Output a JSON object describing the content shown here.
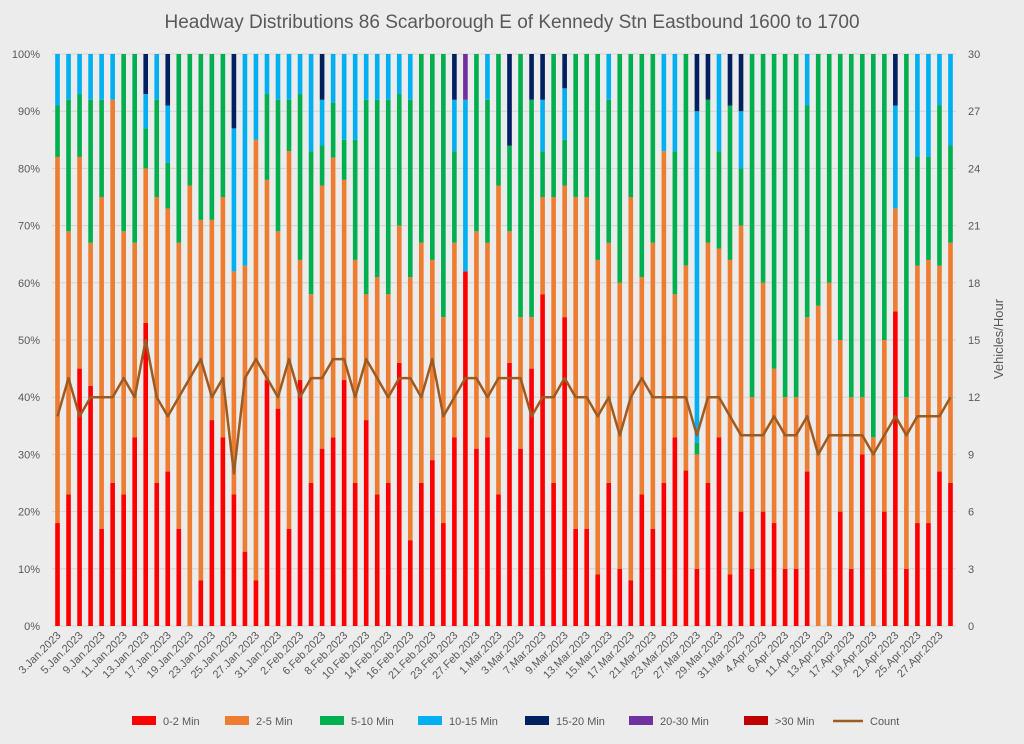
{
  "chart_data": {
    "type": "bar",
    "stacked": true,
    "title": "Headway Distributions 86 Scarborough  E of Kennedy Stn Eastbound 1600 to 1700",
    "ylabel_right": "Vehicles/Hour",
    "y_ticks_left": [
      "0%",
      "10%",
      "20%",
      "30%",
      "40%",
      "50%",
      "60%",
      "70%",
      "80%",
      "90%",
      "100%"
    ],
    "y_ticks_right": [
      "0",
      "3",
      "6",
      "9",
      "12",
      "15",
      "18",
      "21",
      "24",
      "27",
      "30"
    ],
    "ylim_left": [
      0,
      100
    ],
    "ylim_right": [
      0,
      30
    ],
    "grid": true,
    "legend_position": "bottom",
    "categories": [
      "3.Jan.2023",
      "4.Jan.2023",
      "5.Jan.2023",
      "6.Jan.2023",
      "9.Jan.2023",
      "10.Jan.2023",
      "11.Jan.2023",
      "12.Jan.2023",
      "13.Jan.2023",
      "16.Jan.2023",
      "17.Jan.2023",
      "18.Jan.2023",
      "19.Jan.2023",
      "20.Jan.2023",
      "23.Jan.2023",
      "24.Jan.2023",
      "25.Jan.2023",
      "26.Jan.2023",
      "27.Jan.2023",
      "30.Jan.2023",
      "31.Jan.2023",
      "1.Feb.2023",
      "2.Feb.2023",
      "3.Feb.2023",
      "6.Feb.2023",
      "7.Feb.2023",
      "8.Feb.2023",
      "9.Feb.2023",
      "10.Feb.2023",
      "13.Feb.2023",
      "14.Feb.2023",
      "15.Feb.2023",
      "16.Feb.2023",
      "17.Feb.2023",
      "21.Feb.2023",
      "22.Feb.2023",
      "23.Feb.2023",
      "24.Feb.2023",
      "27.Feb.2023",
      "28.Feb.2023",
      "1.Mar.2023",
      "2.Mar.2023",
      "3.Mar.2023",
      "6.Mar.2023",
      "7.Mar.2023",
      "8.Mar.2023",
      "9.Mar.2023",
      "10.Mar.2023",
      "13.Mar.2023",
      "14.Mar.2023",
      "15.Mar.2023",
      "16.Mar.2023",
      "17.Mar.2023",
      "20.Mar.2023",
      "21.Mar.2023",
      "22.Mar.2023",
      "23.Mar.2023",
      "24.Mar.2023",
      "27.Mar.2023",
      "28.Mar.2023",
      "29.Mar.2023",
      "30.Mar.2023",
      "31.Mar.2023",
      "3.Apr.2023",
      "4.Apr.2023",
      "5.Apr.2023",
      "6.Apr.2023",
      "10.Apr.2023",
      "11.Apr.2023",
      "12.Apr.2023",
      "13.Apr.2023",
      "14.Apr.2023",
      "17.Apr.2023",
      "18.Apr.2023",
      "19.Apr.2023",
      "20.Apr.2023",
      "21.Apr.2023",
      "24.Apr.2023",
      "25.Apr.2023",
      "26.Apr.2023",
      "27.Apr.2023",
      "28.Apr.2023"
    ],
    "shown_tick_labels": [
      "3.Jan.2023",
      "5.Jan.2023",
      "9.Jan.2023",
      "11.Jan.2023",
      "13.Jan.2023",
      "17.Jan.2023",
      "19.Jan.2023",
      "23.Jan.2023",
      "25.Jan.2023",
      "27.Jan.2023",
      "31.Jan.2023",
      "2.Feb.2023",
      "6.Feb.2023",
      "8.Feb.2023",
      "10.Feb.2023",
      "14.Feb.2023",
      "16.Feb.2023",
      "21.Feb.2023",
      "23.Feb.2023",
      "27.Feb.2023",
      "1.Mar.2023",
      "3.Mar.2023",
      "7.Mar.2023",
      "9.Mar.2023",
      "13.Mar.2023",
      "15.Mar.2023",
      "17.Mar.2023",
      "21.Mar.2023",
      "23.Mar.2023",
      "27.Mar.2023",
      "29.Mar.2023",
      "31.Mar.2023",
      "4.Apr.2023",
      "6.Apr.2023",
      "11.Apr.2023",
      "13.Apr.2023",
      "17.Apr.2023",
      "19.Apr.2023",
      "21.Apr.2023",
      "25.Apr.2023",
      "27.Apr.2023"
    ],
    "series": [
      {
        "name": "0-2 Min",
        "color": "#ff0000",
        "kind": "bar",
        "values": [
          18,
          23,
          45,
          42,
          17,
          25,
          23,
          33,
          53,
          25,
          27,
          17,
          0,
          8,
          36,
          33,
          23,
          13,
          8,
          43,
          38,
          17,
          43,
          25,
          31,
          31,
          43,
          25,
          36,
          23,
          25,
          46,
          15,
          25,
          29,
          18,
          33,
          62,
          31,
          33,
          23,
          46,
          31,
          45,
          58,
          25,
          54,
          17,
          17,
          9,
          25,
          10,
          8,
          23,
          17,
          25,
          33,
          25,
          10,
          25,
          33,
          9,
          20,
          10,
          20,
          18,
          10,
          10,
          27,
          0,
          0,
          20,
          10,
          30,
          0,
          20,
          55,
          10,
          18,
          18,
          27,
          25
        ]
      },
      {
        "name": "2-5 Min",
        "color": "#ed7d31",
        "kind": "bar",
        "values": [
          64,
          46,
          37,
          25,
          58,
          67,
          46,
          34,
          27,
          50,
          46,
          50,
          77,
          63,
          35,
          42,
          39,
          50,
          77,
          35,
          31,
          66,
          21,
          33,
          46,
          46,
          35,
          39,
          22,
          38,
          33,
          24,
          46,
          42,
          35,
          36,
          34,
          0,
          38,
          34,
          54,
          23,
          23,
          9,
          17,
          50,
          23,
          58,
          58,
          55,
          42,
          50,
          67,
          38,
          50,
          58,
          25,
          33,
          20,
          42,
          33,
          55,
          50,
          30,
          40,
          27,
          30,
          30,
          27,
          56,
          60,
          30,
          30,
          10,
          33,
          30,
          18,
          30,
          45,
          46,
          36,
          42
        ]
      },
      {
        "name": "5-10 Min",
        "color": "#00b050",
        "kind": "bar",
        "values": [
          9,
          23,
          11,
          25,
          17,
          0,
          31,
          33,
          7,
          17,
          8,
          33,
          23,
          29,
          29,
          25,
          0,
          0,
          0,
          15,
          23,
          9,
          29,
          25,
          7,
          9,
          7,
          21,
          34,
          31,
          34,
          23,
          31,
          33,
          36,
          46,
          16,
          0,
          31,
          25,
          23,
          15,
          46,
          38,
          8,
          25,
          8,
          25,
          25,
          36,
          25,
          40,
          25,
          39,
          33,
          0,
          25,
          34,
          2,
          25,
          17,
          27,
          10,
          60,
          40,
          55,
          60,
          60,
          37,
          44,
          40,
          50,
          60,
          60,
          67,
          50,
          0,
          60,
          19,
          18,
          28,
          17
        ]
      },
      {
        "name": "10-15 Min",
        "color": "#00b0f0",
        "kind": "bar",
        "values": [
          9,
          8,
          7,
          8,
          8,
          8,
          0,
          0,
          6,
          8,
          10,
          0,
          0,
          0,
          0,
          0,
          25,
          37,
          15,
          7,
          8,
          8,
          7,
          17,
          8,
          8,
          15,
          15,
          8,
          8,
          8,
          7,
          8,
          0,
          0,
          0,
          9,
          30,
          0,
          8,
          0,
          0,
          0,
          0,
          9,
          0,
          9,
          0,
          0,
          0,
          8,
          0,
          0,
          0,
          0,
          17,
          17,
          0,
          58,
          0,
          17,
          0,
          10,
          0,
          0,
          0,
          0,
          0,
          9,
          0,
          0,
          0,
          0,
          0,
          0,
          0,
          18,
          0,
          18,
          18,
          9,
          16
        ]
      },
      {
        "name": "15-20 Min",
        "color": "#002060",
        "kind": "bar",
        "values": [
          0,
          0,
          0,
          0,
          0,
          0,
          0,
          0,
          7,
          0,
          9,
          0,
          0,
          0,
          0,
          0,
          13,
          0,
          0,
          0,
          0,
          0,
          0,
          0,
          8,
          0,
          0,
          0,
          0,
          0,
          0,
          0,
          0,
          0,
          0,
          0,
          8,
          0,
          0,
          0,
          0,
          16,
          0,
          8,
          8,
          0,
          6,
          0,
          0,
          0,
          0,
          0,
          0,
          0,
          0,
          0,
          0,
          0,
          10,
          8,
          0,
          9,
          10,
          0,
          0,
          0,
          0,
          0,
          0,
          0,
          0,
          0,
          0,
          0,
          0,
          0,
          9,
          0,
          0,
          0,
          0,
          0
        ]
      },
      {
        "name": "20-30 Min",
        "color": "#7030a0",
        "kind": "bar",
        "values": [
          0,
          0,
          0,
          0,
          0,
          0,
          0,
          0,
          0,
          0,
          0,
          0,
          0,
          0,
          0,
          0,
          0,
          0,
          0,
          0,
          0,
          0,
          0,
          0,
          0,
          0,
          0,
          0,
          0,
          0,
          0,
          0,
          0,
          0,
          0,
          0,
          0,
          8,
          0,
          0,
          0,
          0,
          0,
          0,
          0,
          0,
          0,
          0,
          0,
          0,
          0,
          0,
          0,
          0,
          0,
          0,
          0,
          0,
          0,
          0,
          0,
          0,
          0,
          0,
          0,
          0,
          0,
          0,
          0,
          0,
          0,
          0,
          0,
          0,
          0,
          0,
          0,
          0,
          0,
          0,
          0,
          0
        ]
      },
      {
        "name": ">30 Min",
        "color": "#c00000",
        "kind": "bar",
        "values": [
          0,
          0,
          0,
          0,
          0,
          0,
          0,
          0,
          0,
          0,
          0,
          0,
          0,
          0,
          0,
          0,
          0,
          0,
          0,
          0,
          0,
          0,
          0,
          0,
          0,
          0,
          0,
          0,
          0,
          0,
          0,
          0,
          0,
          0,
          0,
          0,
          0,
          0,
          0,
          0,
          0,
          0,
          0,
          0,
          0,
          0,
          0,
          0,
          0,
          0,
          0,
          0,
          0,
          0,
          0,
          0,
          0,
          0,
          0,
          0,
          0,
          0,
          0,
          0,
          0,
          0,
          0,
          0,
          0,
          0,
          0,
          0,
          0,
          0,
          0,
          0,
          0,
          0,
          0,
          0,
          0,
          0
        ]
      },
      {
        "name": "Count",
        "color": "#9c5b23",
        "kind": "line",
        "axis": "right",
        "values": [
          11,
          13,
          11,
          12,
          12,
          12,
          13,
          12,
          15,
          12,
          11,
          12,
          13,
          14,
          12,
          13,
          8,
          13,
          14,
          13,
          12,
          14,
          12,
          13,
          13,
          14,
          14,
          12,
          14,
          13,
          12,
          13,
          13,
          12,
          14,
          11,
          12,
          13,
          13,
          12,
          13,
          13,
          13,
          11,
          12,
          12,
          13,
          12,
          12,
          11,
          12,
          10,
          12,
          13,
          12,
          12,
          12,
          12,
          10,
          12,
          12,
          11,
          10,
          10,
          10,
          11,
          10,
          10,
          11,
          9,
          10,
          10,
          10,
          10,
          9,
          10,
          11,
          10,
          11,
          11,
          11,
          12
        ]
      }
    ]
  }
}
